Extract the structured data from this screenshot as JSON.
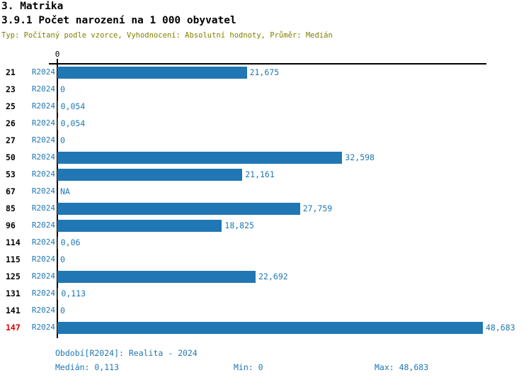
{
  "header": {
    "title": "3. Matrika",
    "subtitle": "3.9.1 Počet narození na 1 000 obyvatel",
    "meta": "Typ: Počítaný podle vzorce, Vyhodnocení: Absolutní hodnoty, Průměr: Medián"
  },
  "chart_data": {
    "type": "bar",
    "orientation": "horizontal",
    "title": "3.9.1 Počet narození na 1 000 obyvatel",
    "xlabel": "",
    "ylabel": "",
    "xlim": [
      0,
      48.683
    ],
    "axis_tick_label": "0",
    "grid": false,
    "legend": "none",
    "bar_color": "#2077b4",
    "categories": [
      "21",
      "23",
      "25",
      "26",
      "27",
      "50",
      "53",
      "67",
      "85",
      "96",
      "114",
      "115",
      "125",
      "131",
      "141",
      "147"
    ],
    "series_label": "R2024",
    "rows": [
      {
        "id": "21",
        "period": "R2024",
        "value": 21.675,
        "label": "21,675",
        "highlight": false
      },
      {
        "id": "23",
        "period": "R2024",
        "value": 0,
        "label": "0",
        "highlight": false
      },
      {
        "id": "25",
        "period": "R2024",
        "value": 0.054,
        "label": "0,054",
        "highlight": false
      },
      {
        "id": "26",
        "period": "R2024",
        "value": 0.054,
        "label": "0,054",
        "highlight": false
      },
      {
        "id": "27",
        "period": "R2024",
        "value": 0,
        "label": "0",
        "highlight": false
      },
      {
        "id": "50",
        "period": "R2024",
        "value": 32.598,
        "label": "32,598",
        "highlight": false
      },
      {
        "id": "53",
        "period": "R2024",
        "value": 21.161,
        "label": "21,161",
        "highlight": false
      },
      {
        "id": "67",
        "period": "R2024",
        "value": null,
        "label": "NA",
        "highlight": false
      },
      {
        "id": "85",
        "period": "R2024",
        "value": 27.759,
        "label": "27,759",
        "highlight": false
      },
      {
        "id": "96",
        "period": "R2024",
        "value": 18.825,
        "label": "18,825",
        "highlight": false
      },
      {
        "id": "114",
        "period": "R2024",
        "value": 0.06,
        "label": "0,06",
        "highlight": false
      },
      {
        "id": "115",
        "period": "R2024",
        "value": 0,
        "label": "0",
        "highlight": false
      },
      {
        "id": "125",
        "period": "R2024",
        "value": 22.692,
        "label": "22,692",
        "highlight": false
      },
      {
        "id": "131",
        "period": "R2024",
        "value": 0.113,
        "label": "0,113",
        "highlight": false
      },
      {
        "id": "141",
        "period": "R2024",
        "value": 0,
        "label": "0",
        "highlight": false
      },
      {
        "id": "147",
        "period": "R2024",
        "value": 48.683,
        "label": "48,683",
        "highlight": true
      }
    ]
  },
  "footer": {
    "period_line": "Období[R2024]: Realita - 2024",
    "median": "Medián: 0,113",
    "min": "Min: 0",
    "max": "Max: 48,683"
  },
  "colors": {
    "bar": "#2077b4",
    "text_blue": "#1f77b4",
    "highlight_red": "#dd0000",
    "subtitle_olive": "#808000",
    "axis_black": "#000000"
  }
}
